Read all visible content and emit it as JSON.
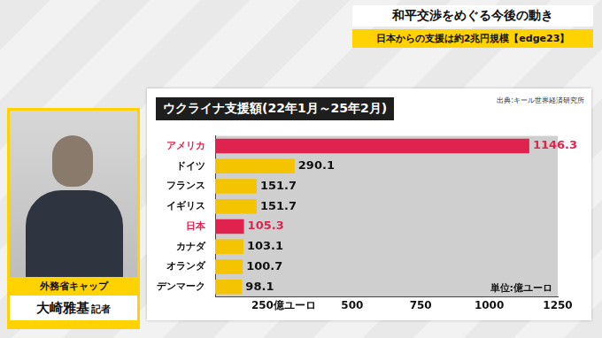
{
  "header": {
    "title": "和平交渉をめぐる今後の動き",
    "subtitle": "日本からの支援は約2兆円規模【edge23】"
  },
  "reporter": {
    "role": "外務省キャップ",
    "name": "大崎雅基",
    "suffix": "記者"
  },
  "chart_data": {
    "type": "bar",
    "orientation": "horizontal",
    "title": "ウクライナ支援額(22年1月～25年2月)",
    "source": "出典:キール世界経済研究所",
    "unit": "単位:億ユーロ",
    "categories": [
      "アメリカ",
      "ドイツ",
      "フランス",
      "イギリス",
      "日本",
      "カナダ",
      "オランダ",
      "デンマーク"
    ],
    "values": [
      1146.3,
      290.1,
      151.7,
      151.7,
      105.3,
      103.1,
      100.7,
      98.1
    ],
    "colors": [
      "#e0234e",
      "#f5c400",
      "#f5c400",
      "#f5c400",
      "#e0234e",
      "#f5c400",
      "#f5c400",
      "#f5c400"
    ],
    "xlim": [
      0,
      1250
    ],
    "xticks": [
      {
        "value": 250,
        "label": "250億ユーロ"
      },
      500,
      750,
      1000,
      1250
    ],
    "grid": false,
    "data_labels": true
  }
}
